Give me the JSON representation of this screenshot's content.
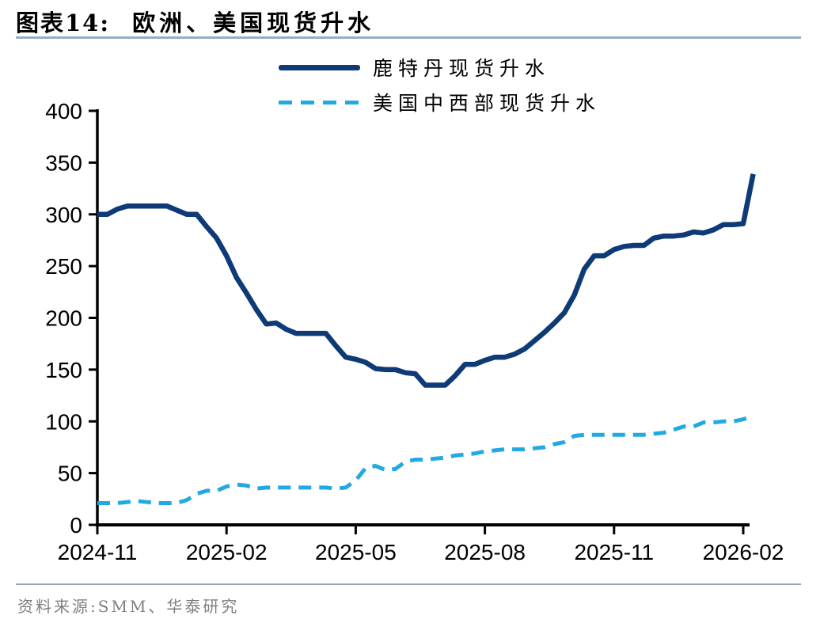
{
  "header": {
    "prefix": "图表14:",
    "title": "欧洲、美国现货升水"
  },
  "legend": [
    {
      "label": "鹿特丹现货升水",
      "color": "#0E3B77",
      "style": "solid"
    },
    {
      "label": "美国中西部现货升水",
      "color": "#22A9E3",
      "style": "dashed"
    }
  ],
  "source": {
    "label": "资料来源:SMM、华泰研究"
  },
  "colors": {
    "rotterdam_line": "#0E3B77",
    "midwest_line": "#22A9E3",
    "axis": "#000000",
    "title_rule": "#98ABC9",
    "footer_rule": "#96A5B8",
    "source_text": "#7F7F7F"
  },
  "chart_data": {
    "type": "line",
    "title": "欧洲、美国现货升水",
    "xlabel": "",
    "ylabel": "",
    "ylim": [
      0,
      400
    ],
    "grid": false,
    "legend_position": "top",
    "y_ticks": [
      0,
      50,
      100,
      150,
      200,
      250,
      300,
      350,
      400
    ],
    "x_tick_labels": [
      "2024-11",
      "2025-02",
      "2025-05",
      "2025-08",
      "2025-11",
      "2026-02"
    ],
    "x_tick_weeks": [
      0,
      13,
      26,
      39,
      52,
      65
    ],
    "x_unit": "week-index from 2024-11",
    "series": [
      {
        "name": "鹿特丹现货升水",
        "color": "#0E3B77",
        "dash": "solid",
        "values": [
          300,
          300,
          305,
          308,
          308,
          308,
          308,
          308,
          304,
          300,
          300,
          288,
          277,
          260,
          239,
          224,
          208,
          194,
          195,
          189,
          185,
          185,
          185,
          185,
          173,
          162,
          160,
          157,
          151,
          150,
          150,
          147,
          146,
          135,
          135,
          135,
          144,
          155,
          155,
          159,
          162,
          162,
          165,
          170,
          178,
          186,
          195,
          205,
          222,
          247,
          260,
          260,
          266,
          269,
          270,
          270,
          277,
          279,
          279,
          280,
          283,
          282,
          285,
          290,
          290,
          291,
          339
        ]
      },
      {
        "name": "美国中西部现货升水",
        "color": "#22A9E3",
        "dash": "dashed",
        "values": [
          21,
          21,
          21,
          22,
          23,
          22,
          21,
          21,
          21,
          24,
          30,
          33,
          33,
          37,
          39,
          38,
          35,
          36,
          36,
          36,
          36,
          36,
          36,
          36,
          35,
          36,
          43,
          55,
          57,
          53,
          54,
          61,
          63,
          63,
          64,
          65,
          67,
          68,
          69,
          71,
          72,
          73,
          73,
          73,
          74,
          75,
          78,
          80,
          86,
          87,
          87,
          87,
          87,
          87,
          87,
          87,
          88,
          89,
          92,
          95,
          95,
          99,
          99,
          100,
          100,
          102,
          105
        ]
      }
    ]
  }
}
